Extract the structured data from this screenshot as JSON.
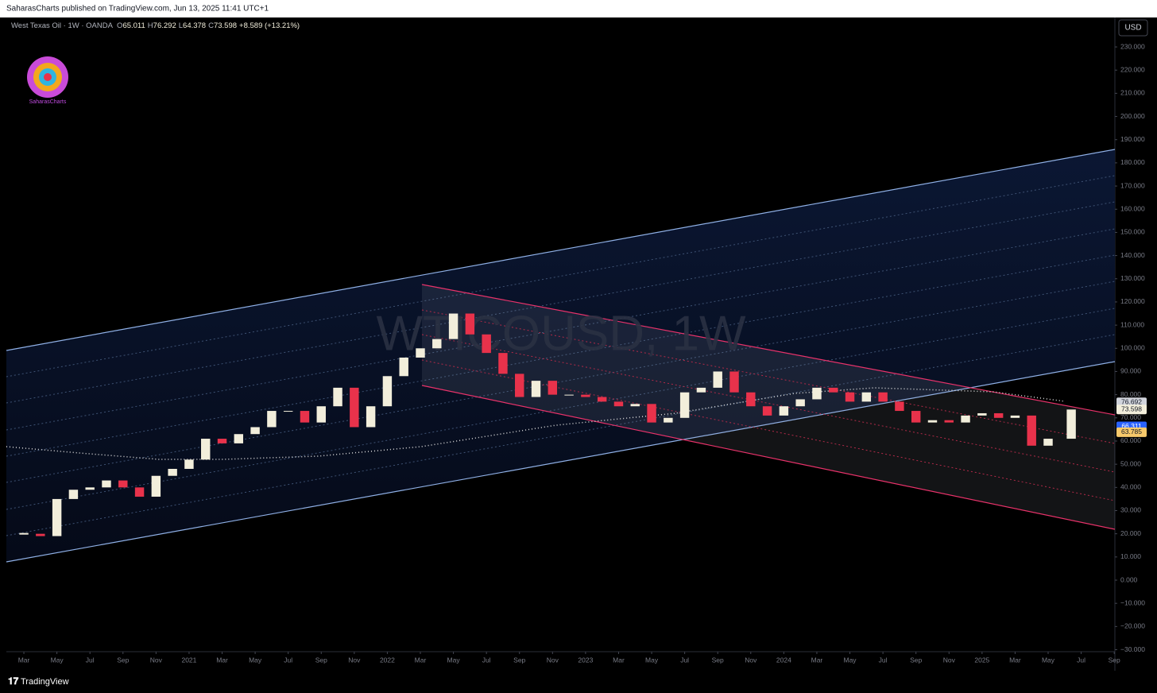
{
  "header": {
    "published": "SaharasCharts published on TradingView.com, Jun 13, 2025 11:41 UTC+1",
    "symbol": "West Texas Oil · 1W · OANDA",
    "ohlc": [
      {
        "key": "O",
        "value": "65.011"
      },
      {
        "key": "H",
        "value": "76.292"
      },
      {
        "key": "L",
        "value": "64.378"
      },
      {
        "key": "C",
        "value": "73.598"
      }
    ],
    "change": "+8.589 (+13.21%)",
    "currency": "USD",
    "logo": "SaharasCharts",
    "watermark": "WTICOUSD, 1W"
  },
  "footer": {
    "brand": "TradingView"
  },
  "chart_data": {
    "type": "candlestick",
    "up_color": "#f2eedb",
    "down_color": "#e8324b",
    "x": [
      2,
      3,
      4,
      5,
      6,
      7,
      8,
      9,
      10,
      11,
      12,
      13,
      14,
      15,
      16,
      17,
      18,
      19,
      20,
      21,
      22,
      23,
      24,
      25,
      26,
      27,
      28,
      29,
      30,
      31,
      32,
      33,
      34,
      35,
      36,
      37,
      38,
      39,
      40,
      41,
      42,
      43,
      44,
      45,
      46,
      47,
      48,
      49,
      50,
      51,
      52,
      53,
      54,
      55,
      56,
      57,
      58,
      59,
      60,
      61,
      62,
      63,
      64,
      65.4
    ],
    "closes": [
      20,
      19,
      35,
      39,
      40,
      43,
      40,
      36,
      45,
      48,
      52,
      61,
      59,
      63,
      66,
      73,
      73,
      68,
      75,
      83,
      66,
      75,
      88,
      96,
      100,
      104,
      115,
      106,
      98,
      89,
      79,
      86,
      80,
      80,
      79,
      77,
      75,
      76,
      68,
      70,
      81,
      83,
      90,
      81,
      75,
      71,
      75,
      78,
      83,
      81,
      77,
      81,
      77,
      73,
      68,
      69,
      68,
      71,
      72,
      70,
      71,
      58,
      61,
      73.598
    ],
    "xlim": [
      0.94,
      68.04
    ],
    "xticks": [
      {
        "value": 2,
        "label": "Mar"
      },
      {
        "value": 4,
        "label": "May"
      },
      {
        "value": 6,
        "label": "Jul"
      },
      {
        "value": 8,
        "label": "Sep"
      },
      {
        "value": 10,
        "label": "Nov"
      },
      {
        "value": 12,
        "label": "2021"
      },
      {
        "value": 14,
        "label": "Mar"
      },
      {
        "value": 16,
        "label": "May"
      },
      {
        "value": 18,
        "label": "Jul"
      },
      {
        "value": 20,
        "label": "Sep"
      },
      {
        "value": 22,
        "label": "Nov"
      },
      {
        "value": 24,
        "label": "2022"
      },
      {
        "value": 26,
        "label": "Mar"
      },
      {
        "value": 28,
        "label": "May"
      },
      {
        "value": 30,
        "label": "Jul"
      },
      {
        "value": 32,
        "label": "Sep"
      },
      {
        "value": 34,
        "label": "Nov"
      },
      {
        "value": 36,
        "label": "2023"
      },
      {
        "value": 38,
        "label": "Mar"
      },
      {
        "value": 40,
        "label": "May"
      },
      {
        "value": 42,
        "label": "Jul"
      },
      {
        "value": 44,
        "label": "Sep"
      },
      {
        "value": 46,
        "label": "Nov"
      },
      {
        "value": 48,
        "label": "2024"
      },
      {
        "value": 50,
        "label": "Mar"
      },
      {
        "value": 52,
        "label": "May"
      },
      {
        "value": 54,
        "label": "Jul"
      },
      {
        "value": 56,
        "label": "Sep"
      },
      {
        "value": 58,
        "label": "Nov"
      },
      {
        "value": 60,
        "label": "2025"
      },
      {
        "value": 62,
        "label": "Mar"
      },
      {
        "value": 64,
        "label": "May"
      },
      {
        "value": 66,
        "label": "Jul"
      },
      {
        "value": 68,
        "label": "Sep"
      }
    ],
    "ylim": [
      -30.85,
      242.7
    ],
    "yticks": [
      {
        "value": 230,
        "label": "230.000"
      },
      {
        "value": 220,
        "label": "220.000"
      },
      {
        "value": 210,
        "label": "210.000"
      },
      {
        "value": 200,
        "label": "200.000"
      },
      {
        "value": 190,
        "label": "190.000"
      },
      {
        "value": 180,
        "label": "180.000"
      },
      {
        "value": 170,
        "label": "170.000"
      },
      {
        "value": 160,
        "label": "160.000"
      },
      {
        "value": 150,
        "label": "150.000"
      },
      {
        "value": 140,
        "label": "140.000"
      },
      {
        "value": 130,
        "label": "130.000"
      },
      {
        "value": 120,
        "label": "120.000"
      },
      {
        "value": 110,
        "label": "110.000"
      },
      {
        "value": 100,
        "label": "100.000"
      },
      {
        "value": 90,
        "label": "90.000"
      },
      {
        "value": 80,
        "label": "80.000"
      },
      {
        "value": 70,
        "label": "70.000"
      },
      {
        "value": 60,
        "label": "60.000"
      },
      {
        "value": 50,
        "label": "50.000"
      },
      {
        "value": 40,
        "label": "40.000"
      },
      {
        "value": 30,
        "label": "30.000"
      },
      {
        "value": 20,
        "label": "20.000"
      },
      {
        "value": 10,
        "label": "10.000"
      },
      {
        "value": 0,
        "label": "0.000"
      },
      {
        "value": -10,
        "label": "−10.000"
      },
      {
        "value": -20,
        "label": "−20.000"
      },
      {
        "value": -30,
        "label": "−30.000"
      }
    ],
    "price_labels": [
      {
        "value": 76.692,
        "color": "#d1d4dc",
        "text_color": "#131722"
      },
      {
        "value": 73.598,
        "color": "#f2eedb",
        "text_color": "#131722"
      },
      {
        "value": 66.311,
        "color": "#2962ff",
        "text_color": "#ffffff"
      },
      {
        "value": 63.785,
        "color": "#f7c96b",
        "text_color": "#131722"
      }
    ]
  }
}
